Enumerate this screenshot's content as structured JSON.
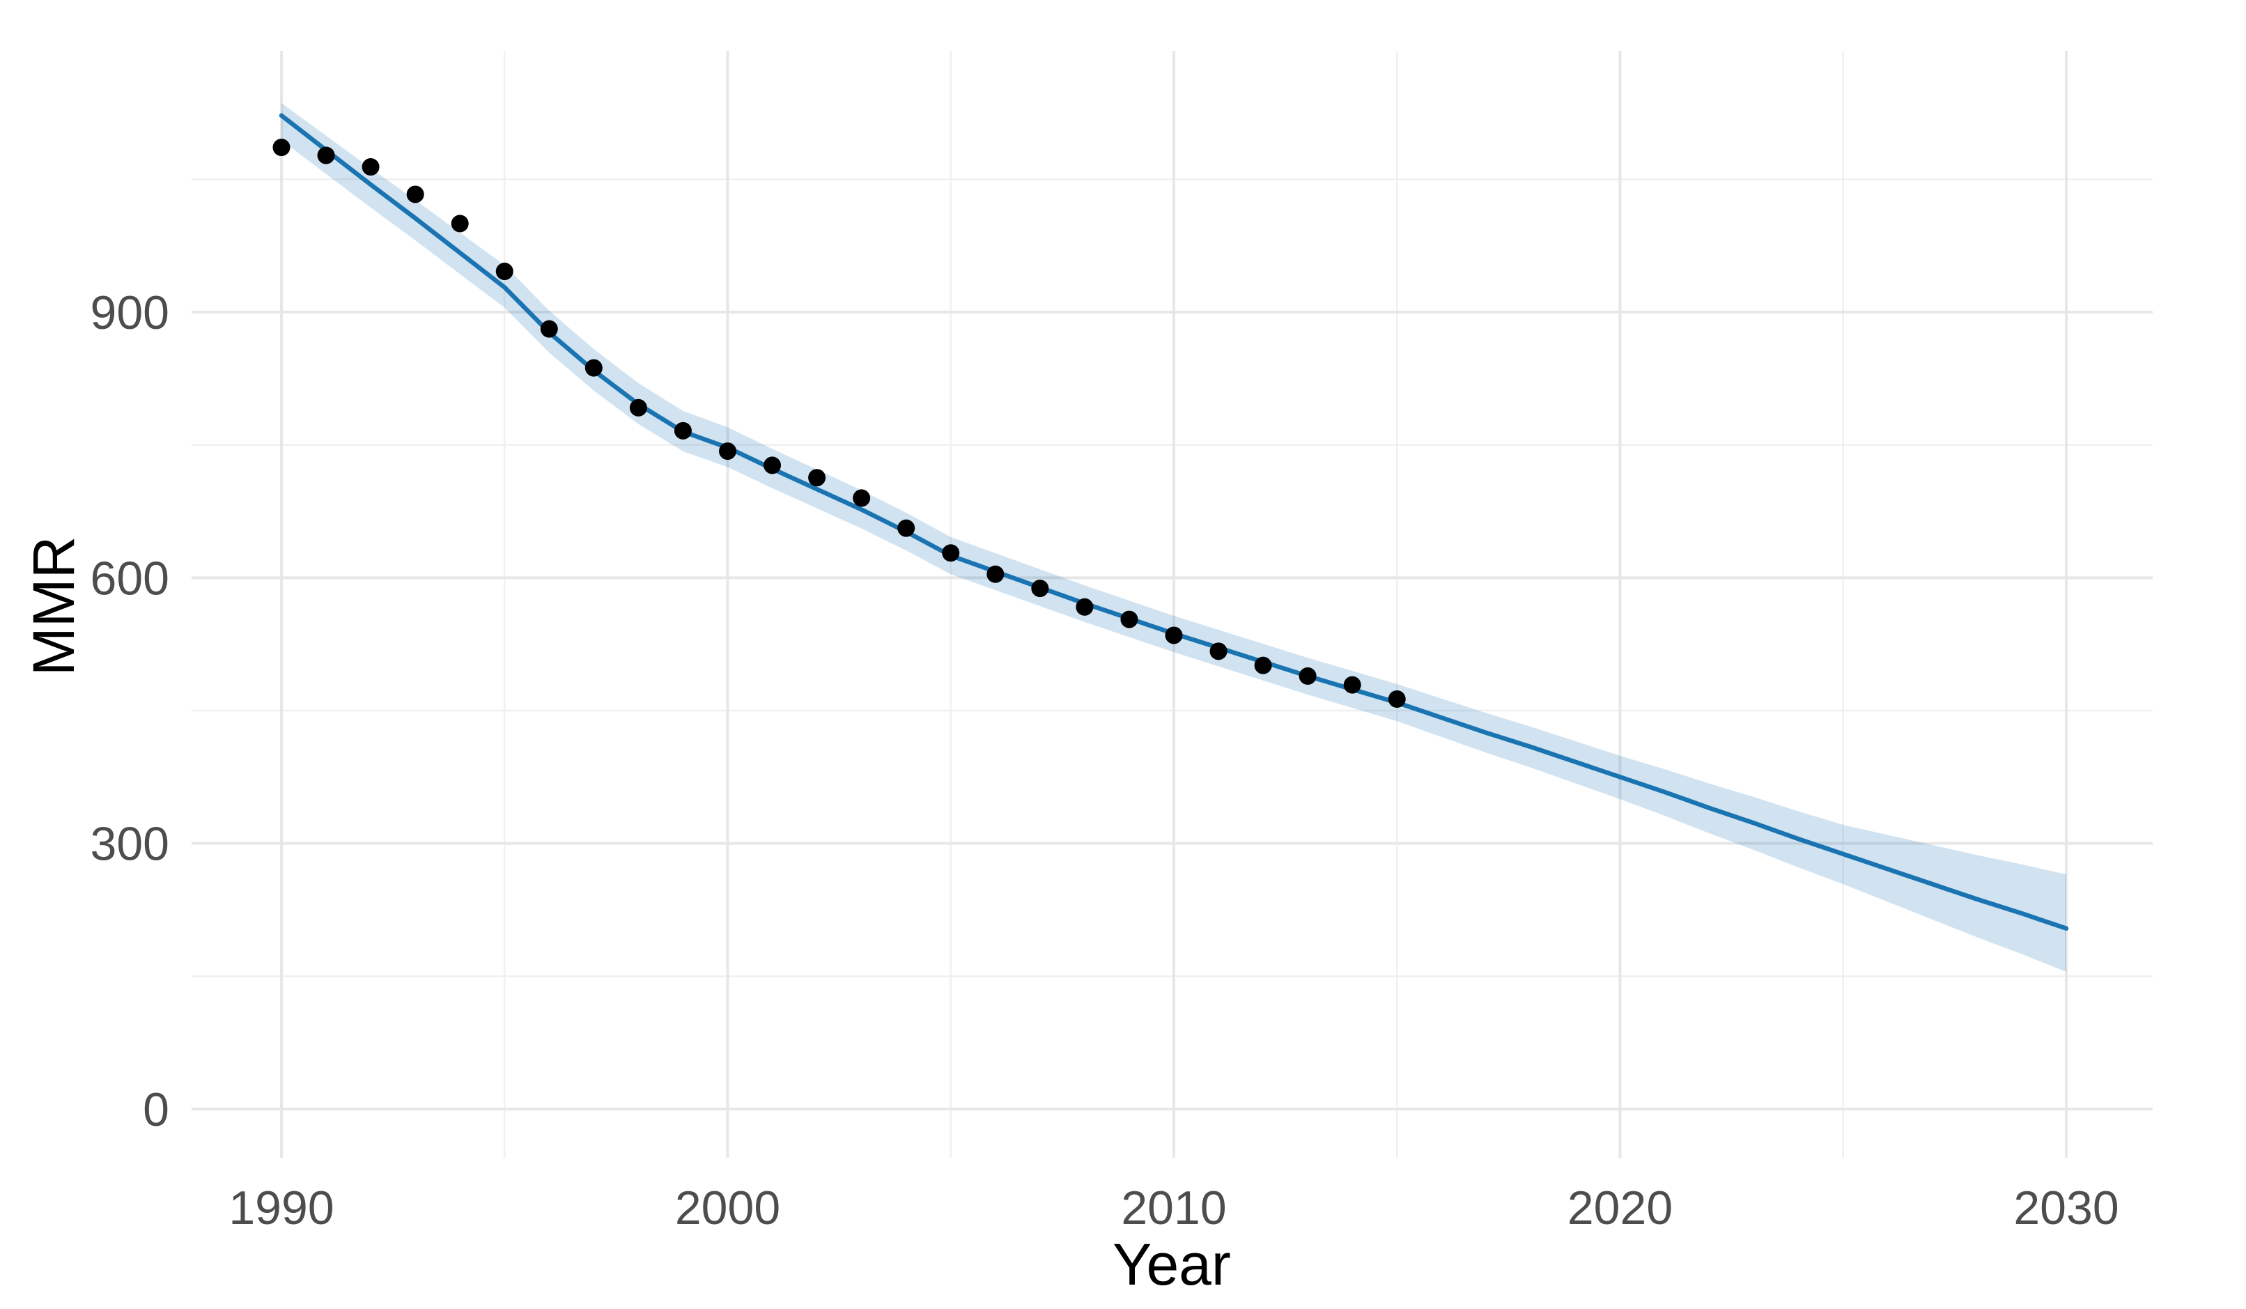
{
  "chart_data": {
    "type": "scatter",
    "subtype": "scatter-with-loess-smooth-and-confidence-ribbon",
    "xlabel": "Year",
    "ylabel": "MMR",
    "x_ticks": [
      1990,
      2000,
      2010,
      2020,
      2030
    ],
    "x_tick_labels": [
      "1990",
      "2000",
      "2010",
      "2020",
      "2030"
    ],
    "x_minor_ticks": [
      1995,
      2005,
      2015,
      2025
    ],
    "y_ticks": [
      0,
      300,
      600,
      900
    ],
    "y_tick_labels": [
      "0",
      "300",
      "600",
      "900"
    ],
    "y_minor_ticks": [
      150,
      450,
      750,
      1050
    ],
    "xlim": [
      1988,
      2032
    ],
    "ylim": [
      -55,
      1195
    ],
    "grid": "on",
    "legend": "none",
    "points": {
      "years": [
        1990,
        1991,
        1992,
        1993,
        1994,
        1995,
        1996,
        1997,
        1998,
        1999,
        2000,
        2001,
        2002,
        2003,
        2004,
        2005,
        2006,
        2007,
        2008,
        2009,
        2010,
        2011,
        2012,
        2013,
        2014,
        2015
      ],
      "values": [
        1086,
        1077,
        1064,
        1033,
        1000,
        946,
        881,
        837,
        792,
        766,
        743,
        727,
        713,
        690,
        656,
        628,
        604,
        588,
        567,
        553,
        535,
        517,
        501,
        489,
        479,
        463
      ]
    },
    "smooth_line": {
      "years": [
        1990,
        1991,
        1992,
        1993,
        1994,
        1995,
        1996,
        1997,
        1998,
        1999,
        2000,
        2001,
        2002,
        2003,
        2004,
        2005,
        2006,
        2007,
        2008,
        2009,
        2010,
        2011,
        2012,
        2013,
        2014,
        2015,
        2016,
        2017,
        2018,
        2019,
        2020,
        2021,
        2022,
        2023,
        2024,
        2025,
        2026,
        2027,
        2028,
        2029,
        2030
      ],
      "values": [
        1122,
        1083,
        1044,
        1006,
        967,
        928,
        877,
        834,
        796,
        765,
        747,
        723,
        700,
        677,
        652,
        625,
        607,
        589,
        571,
        554,
        537,
        521,
        505,
        489,
        474,
        459,
        442,
        425,
        409,
        392,
        375,
        358,
        340,
        323,
        305,
        288,
        271,
        254,
        237,
        221,
        204
      ]
    },
    "ribbon": {
      "years": [
        1990,
        1995,
        2000,
        2005,
        2010,
        2015,
        2020,
        2025,
        2030
      ],
      "lower": [
        1094,
        905,
        725,
        604,
        516,
        438,
        350,
        254,
        155
      ],
      "upper": [
        1136,
        953,
        770,
        646,
        557,
        480,
        399,
        321,
        265
      ]
    },
    "colors": {
      "line": "#1b74b2",
      "ribbon_rgba": "rgba(27,116,178,0.2)",
      "point": "#000000",
      "grid_major": "#e7e7e7",
      "grid_minor": "#f0f0f0",
      "tick_label": "#4d4d4d",
      "axis_title": "#000000",
      "background": "#ffffff"
    }
  }
}
